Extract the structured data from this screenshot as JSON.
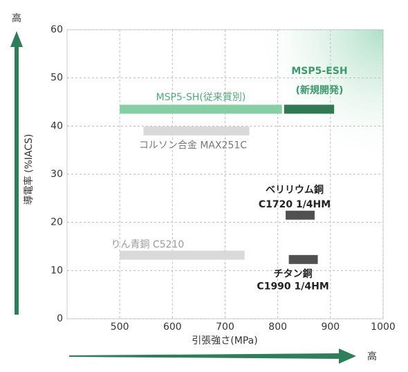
{
  "chart_data": {
    "type": "range_bar",
    "x_label": "引張強さ(MPa)",
    "y_label": "導電率 (%IACS)",
    "x_arrow_label": "高",
    "y_arrow_label": "高",
    "xlim": [
      400,
      1000
    ],
    "xticks": [
      500,
      600,
      700,
      800,
      900,
      1000
    ],
    "ylim": [
      0,
      60
    ],
    "yticks": [
      0,
      10,
      20,
      30,
      40,
      50,
      60
    ],
    "grid": true,
    "series": [
      {
        "name": "MSP5-SH(従来質別)",
        "color": "#86cfa3",
        "x": [
          500,
          808
        ],
        "y": 43.5
      },
      {
        "name": "MSP5-ESH",
        "subname": "(新規開発)",
        "color": "#2f7a52",
        "x": [
          812,
          907
        ],
        "y": 43.5
      },
      {
        "name": "コルソン合金 MAX251C",
        "color": "#d9d9d9",
        "x": [
          545,
          746
        ],
        "y": 39
      },
      {
        "name": "ベリリウム銅",
        "subname": "C1720 1/4HM",
        "color": "#505050",
        "x": [
          815,
          870
        ],
        "y": 21.5
      },
      {
        "name": "りん青銅 C5210",
        "color": "#d9d9d9",
        "x": [
          500,
          737
        ],
        "y": 13.2
      },
      {
        "name": "チタン銅",
        "subname": "C1990 1/4HM",
        "color": "#505050",
        "x": [
          821,
          876
        ],
        "y": 12.3
      }
    ]
  }
}
